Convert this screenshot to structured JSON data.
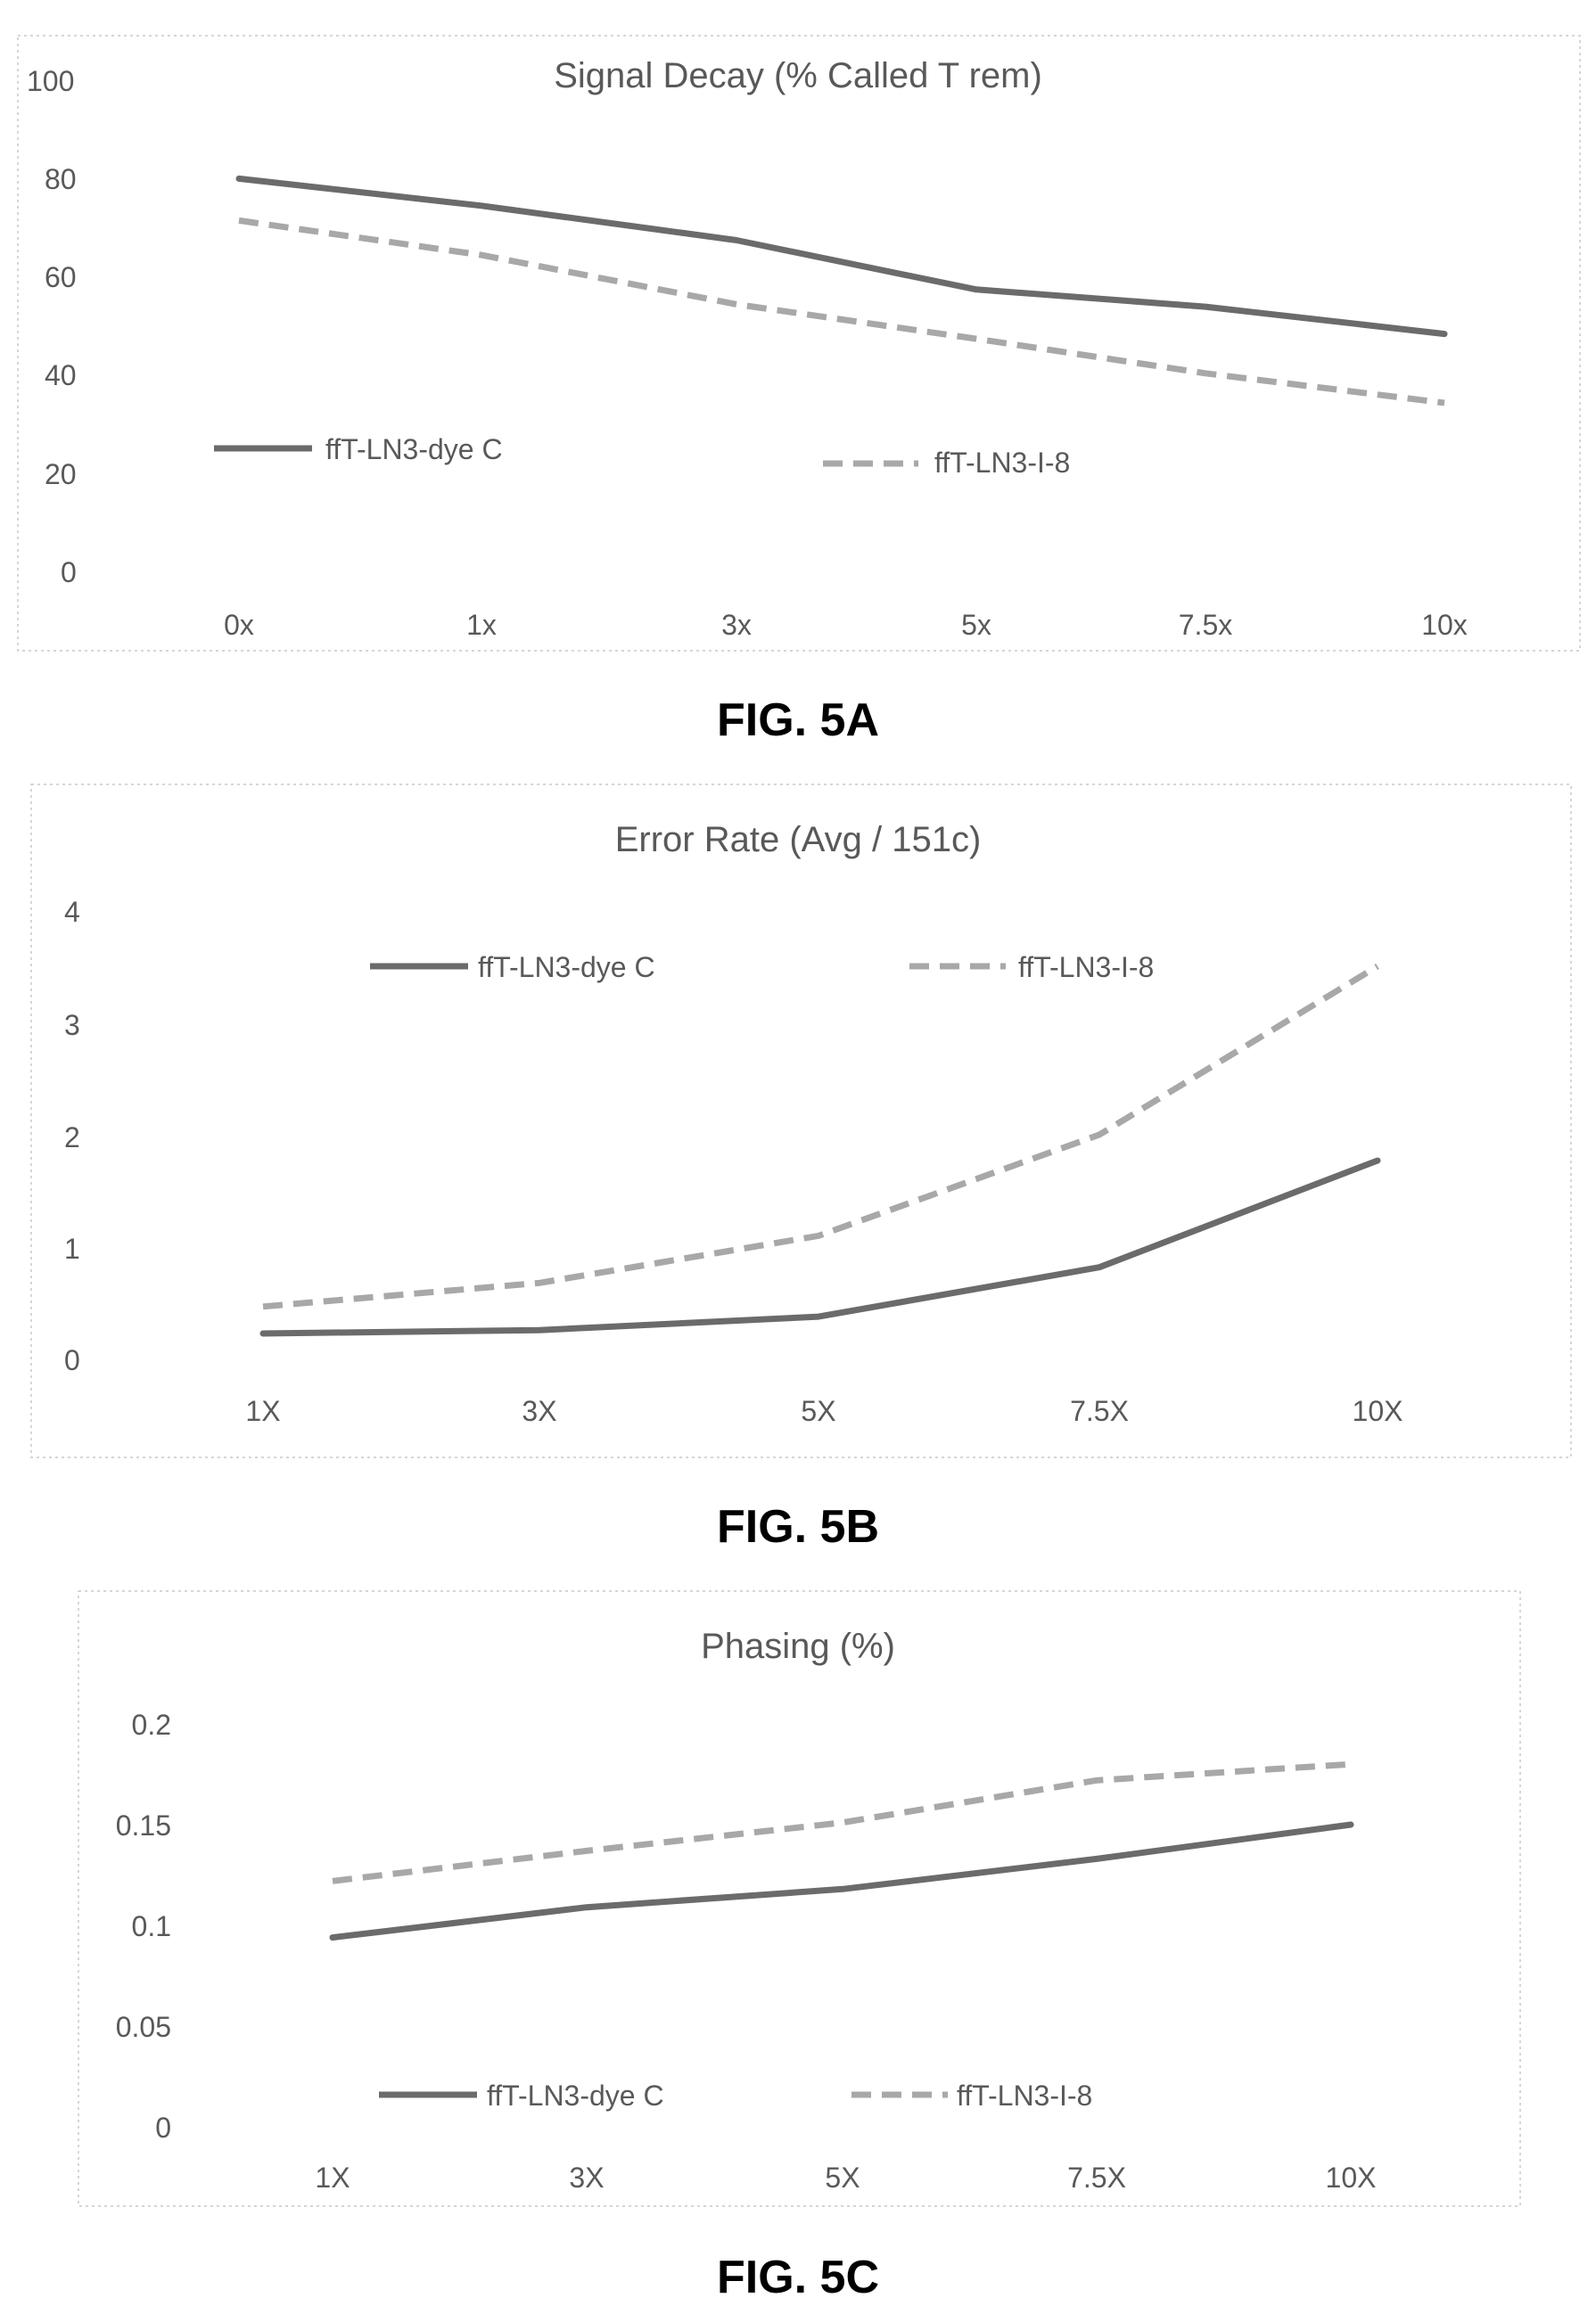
{
  "colors": {
    "solid": "#6b6b6b",
    "dashed": "#a8a8a8",
    "text": "#595959"
  },
  "chart_data": [
    {
      "type": "line",
      "figure_label": "FIG. 5A",
      "title": "Signal Decay (% Called T rem)",
      "xlabel": "",
      "ylabel": "",
      "categories": [
        "0x",
        "1x",
        "3x",
        "5x",
        "7.5x",
        "10x"
      ],
      "y_ticks": [
        "100",
        "80",
        "60",
        "40",
        "20",
        "0"
      ],
      "ylim": [
        0,
        100
      ],
      "grid": false,
      "legend_position": "bottom-left",
      "series": [
        {
          "name": "ffT-LN3-dye C",
          "style": "solid",
          "values": [
            79.5,
            74,
            67,
            57,
            53.5,
            48
          ]
        },
        {
          "name": "ffT-LN3-I-8",
          "style": "dashed",
          "values": [
            71,
            64,
            54,
            47,
            40,
            34
          ]
        }
      ]
    },
    {
      "type": "line",
      "figure_label": "FIG. 5B",
      "title": "Error Rate (Avg / 151c)",
      "xlabel": "",
      "ylabel": "",
      "categories": [
        "1X",
        "3X",
        "5X",
        "7.5X",
        "10X"
      ],
      "y_ticks": [
        "4",
        "3",
        "2",
        "1",
        "0"
      ],
      "ylim": [
        0,
        4
      ],
      "grid": false,
      "legend_position": "top",
      "series": [
        {
          "name": "ffT-LN3-dye C",
          "style": "solid",
          "values": [
            0.23,
            0.26,
            0.38,
            0.82,
            1.77
          ]
        },
        {
          "name": "ffT-LN3-I-8",
          "style": "dashed",
          "values": [
            0.47,
            0.68,
            1.1,
            2.0,
            3.5
          ]
        }
      ]
    },
    {
      "type": "line",
      "figure_label": "FIG. 5C",
      "title": "Phasing (%)",
      "xlabel": "",
      "ylabel": "",
      "categories": [
        "1X",
        "3X",
        "5X",
        "7.5X",
        "10X"
      ],
      "y_ticks": [
        "0.2",
        "0.15",
        "0.1",
        "0.05",
        "0"
      ],
      "ylim": [
        0,
        0.2
      ],
      "grid": false,
      "legend_position": "bottom",
      "series": [
        {
          "name": "ffT-LN3-dye C",
          "style": "solid",
          "values": [
            0.094,
            0.109,
            0.118,
            0.133,
            0.15
          ]
        },
        {
          "name": "ffT-LN3-I-8",
          "style": "dashed",
          "values": [
            0.122,
            0.137,
            0.151,
            0.172,
            0.18
          ]
        }
      ]
    }
  ]
}
